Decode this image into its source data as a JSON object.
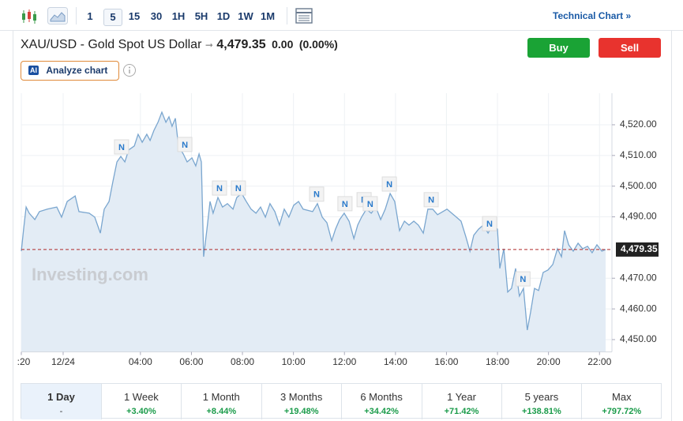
{
  "toolbar": {
    "intervals": [
      "1",
      "5",
      "15",
      "30",
      "1H",
      "5H",
      "1D",
      "1W",
      "1M"
    ],
    "selected": "5",
    "link": "Technical Chart »"
  },
  "header": {
    "title": "XAU/USD - Gold Spot US Dollar",
    "price": "4,479.35",
    "change": "0.00",
    "change_pct": "(0.00%)",
    "buy": "Buy",
    "sell": "Sell",
    "ai_badge": "AI",
    "analyze": "Analyze chart"
  },
  "chart_data": {
    "type": "line",
    "color": "#7aa6cf",
    "fill": "#e3ecf5",
    "watermark": "Investing.com",
    "x": [
      -0.67,
      -0.58,
      -0.48,
      -0.36,
      -0.14,
      0.04,
      0.35,
      0.72,
      0.91,
      1.13,
      1.44,
      1.59,
      1.99,
      2.21,
      2.43,
      2.58,
      2.77,
      2.92,
      3.08,
      3.23,
      3.39,
      3.54,
      3.76,
      3.91,
      4.07,
      4.25,
      4.38,
      4.53,
      4.69,
      4.84,
      5.0,
      5.12,
      5.24,
      5.37,
      5.49,
      5.68,
      5.83,
      6.02,
      6.17,
      6.3,
      6.39,
      6.48,
      6.61,
      6.73,
      6.85,
      7.04,
      7.22,
      7.41,
      7.63,
      7.78,
      7.97,
      8.15,
      8.34,
      8.53,
      8.71,
      8.9,
      9.08,
      9.27,
      9.45,
      9.64,
      9.82,
      10.01,
      10.2,
      10.38,
      10.75,
      10.94,
      11.13,
      11.31,
      11.5,
      11.65,
      11.81,
      11.99,
      12.18,
      12.37,
      12.52,
      12.67,
      12.86,
      13.05,
      13.23,
      13.42,
      13.6,
      13.79,
      13.97,
      14.16,
      14.35,
      14.53,
      14.72,
      14.9,
      15.09,
      15.27,
      15.46,
      15.65,
      16.02,
      16.39,
      16.57,
      16.76,
      16.92,
      17.07,
      17.26,
      17.44,
      17.63,
      17.81,
      18.0,
      18.09,
      18.25,
      18.4,
      18.55,
      18.71,
      18.86,
      19.02,
      19.17,
      19.3,
      19.45,
      19.61,
      19.79,
      19.98,
      20.17,
      20.35,
      20.51,
      20.63,
      20.79,
      20.97,
      21.16,
      21.34,
      21.53,
      21.71,
      21.9,
      22.09,
      22.24
    ],
    "values": [
      4478.8,
      4486.0,
      4493.2,
      4491.2,
      4489.1,
      4491.7,
      4492.5,
      4493.2,
      4489.9,
      4495.0,
      4496.8,
      4491.7,
      4491.2,
      4489.9,
      4484.7,
      4492.5,
      4495.0,
      4501.5,
      4507.9,
      4509.7,
      4507.9,
      4511.8,
      4513.1,
      4516.9,
      4514.3,
      4516.9,
      4514.9,
      4518.2,
      4520.8,
      4524.1,
      4520.8,
      4522.6,
      4519.5,
      4522.1,
      4513.1,
      4510.5,
      4507.9,
      4509.2,
      4506.6,
      4510.5,
      4507.9,
      4477.0,
      4486.0,
      4495.0,
      4491.2,
      4496.3,
      4493.2,
      4494.3,
      4492.5,
      4496.3,
      4497.6,
      4495.0,
      4492.5,
      4491.2,
      4493.2,
      4489.9,
      4494.3,
      4491.7,
      4487.3,
      4492.5,
      4489.9,
      4493.8,
      4495.0,
      4492.5,
      4491.7,
      4494.3,
      4489.9,
      4488.1,
      4482.2,
      4486.0,
      4489.1,
      4491.2,
      4488.6,
      4482.9,
      4487.3,
      4489.9,
      4492.5,
      4491.2,
      4493.2,
      4489.1,
      4492.5,
      4497.6,
      4495.0,
      4485.5,
      4488.6,
      4487.3,
      4488.6,
      4487.3,
      4484.7,
      4492.5,
      4492.5,
      4490.7,
      4492.5,
      4489.9,
      4488.6,
      4483.5,
      4478.8,
      4484.0,
      4486.0,
      4487.3,
      4484.7,
      4487.3,
      4486.0,
      4473.2,
      4479.6,
      4465.5,
      4466.7,
      4473.2,
      4464.2,
      4466.7,
      4453.1,
      4459.0,
      4466.7,
      4466.0,
      4471.9,
      4472.7,
      4474.5,
      4479.6,
      4477.0,
      4485.5,
      4480.9,
      4478.8,
      4481.4,
      4479.6,
      4480.4,
      4478.3,
      4480.9,
      4478.8,
      4479.35
    ],
    "xlim": [
      -0.67,
      22.24
    ],
    "ylim": [
      4446,
      4530
    ],
    "xticks": [
      {
        "value": -0.67,
        "label": ":20"
      },
      {
        "value": 0.97,
        "label": "12/24"
      },
      {
        "value": 4,
        "label": "04:00"
      },
      {
        "value": 6,
        "label": "06:00"
      },
      {
        "value": 8,
        "label": "08:00"
      },
      {
        "value": 10,
        "label": "10:00"
      },
      {
        "value": 12,
        "label": "12:00"
      },
      {
        "value": 14,
        "label": "14:00"
      },
      {
        "value": 16,
        "label": "16:00"
      },
      {
        "value": 18,
        "label": "18:00"
      },
      {
        "value": 20,
        "label": "20:00"
      },
      {
        "value": 22,
        "label": "22:00"
      }
    ],
    "yticks": [
      {
        "value": 4450,
        "label": "4,450.00"
      },
      {
        "value": 4460,
        "label": "4,460.00"
      },
      {
        "value": 4470,
        "label": "4,470.00"
      },
      {
        "value": 4490,
        "label": "4,490.00"
      },
      {
        "value": 4500,
        "label": "4,500.00"
      },
      {
        "value": 4510,
        "label": "4,510.00"
      },
      {
        "value": 4520,
        "label": "4,520.00"
      }
    ],
    "last_price": {
      "value": 4479.35,
      "label": "4,479.35"
    },
    "news": [
      {
        "x": 3.26,
        "label": "N"
      },
      {
        "x": 5.74,
        "label": "N"
      },
      {
        "x": 7.1,
        "label": "N"
      },
      {
        "x": 7.84,
        "label": "N"
      },
      {
        "x": 10.91,
        "label": "N"
      },
      {
        "x": 12.02,
        "label": "N"
      },
      {
        "x": 12.77,
        "label": "N"
      },
      {
        "x": 13.01,
        "label": "N"
      },
      {
        "x": 13.76,
        "label": "N"
      },
      {
        "x": 15.4,
        "label": "N"
      },
      {
        "x": 17.69,
        "label": "N"
      },
      {
        "x": 19.0,
        "label": "N"
      }
    ],
    "grid": true
  },
  "performance": [
    {
      "label": "1 Day",
      "change": "-"
    },
    {
      "label": "1 Week",
      "change": "+3.40%"
    },
    {
      "label": "1 Month",
      "change": "+8.44%"
    },
    {
      "label": "3 Months",
      "change": "+19.48%"
    },
    {
      "label": "6 Months",
      "change": "+34.42%"
    },
    {
      "label": "1 Year",
      "change": "+71.42%"
    },
    {
      "label": "5 years",
      "change": "+138.81%"
    },
    {
      "label": "Max",
      "change": "+797.72%"
    }
  ]
}
